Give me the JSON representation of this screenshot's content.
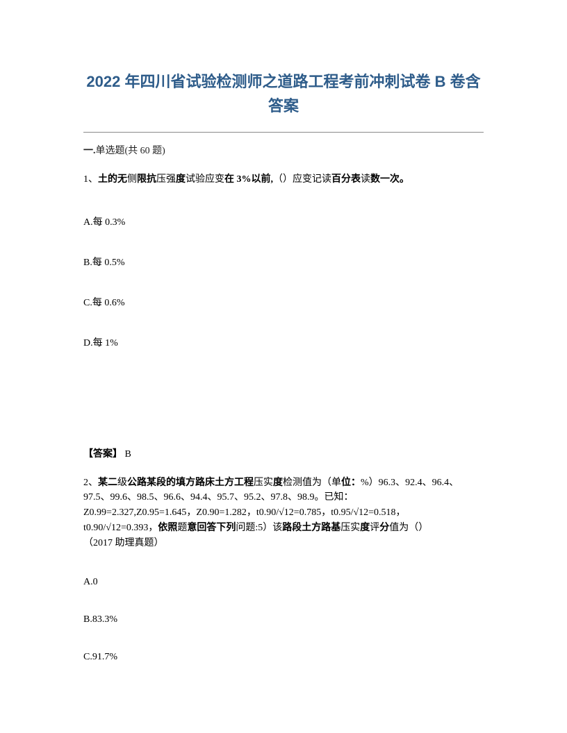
{
  "title": "2022 年四川省试验检测师之道路工程考前冲刺试卷 B 卷含答案",
  "section": {
    "prefix": "一.",
    "label": "单选题(共 60 题)"
  },
  "q1": {
    "number": "1、",
    "text_bold1": "土的无",
    "text_plain1": "侧",
    "text_bold2": "限抗",
    "text_plain2": "压强",
    "text_bold3": "度",
    "text_plain3": "试验应变",
    "text_bold4": "在 3%以前,",
    "text_plain4": "（）应变记读",
    "text_bold5": "百分表",
    "text_plain5": "读",
    "text_bold6": "数一次。",
    "optA": "A.每 0.3%",
    "optB": "B.每 0.5%",
    "optC": "C.每 0.6%",
    "optD": "D.每 1%",
    "answer_label": "【答案】",
    "answer_value": " B"
  },
  "q2": {
    "number": "2、",
    "line1_bold1": "某二",
    "line1_plain1": "级",
    "line1_bold2": "公路某段的填方路床土方工程",
    "line1_plain2": "压实",
    "line1_bold3": "度",
    "line1_plain3": "检测值为（单",
    "line1_bold4": "位：",
    "line1_plain4": "%）96.3、92.4、96.4、",
    "line2": "97.5、99.6、98.5、96.6、94.4、95.7、95.2、97.8、98.9。已知：",
    "line3": "Z0.99=2.327,Z0.95=1.645，Z0.90=1.282，t0.90/√12=0.785，t0.95/√12=0.518，",
    "line4_plain1": "t0.90/√12=0.393，",
    "line4_bold1": "依照",
    "line4_plain2": "题",
    "line4_bold2": "意回答下列",
    "line4_plain3": "问题:5）该",
    "line4_bold3": "路段土方路基",
    "line4_plain4": "压实",
    "line4_bold4": "度",
    "line4_plain5": "评",
    "line4_bold5": "分",
    "line4_plain6": "值为（）",
    "line5": "（2017 助理真题）",
    "optA": "A.0",
    "optB": "B.83.3%",
    "optC": "C.91.7%"
  }
}
